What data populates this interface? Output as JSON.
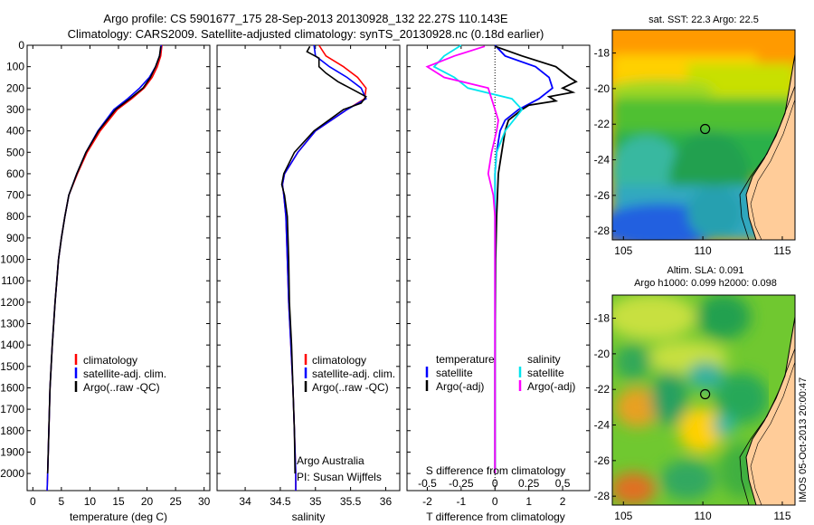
{
  "header": {
    "title_line1": "Argo profile: CS 5901677_175 28-Sep-2013 20130928_132 22.27S 110.143E",
    "title_line2": "Climatology: CARS2009. Satellite-adjusted climatology: synTS_20130928.nc (0.18d earlier)"
  },
  "colors": {
    "climatology": "#ff0000",
    "satellite_adj": "#0000ff",
    "argo": "#000000",
    "s_satellite": "#00e5ee",
    "s_argo": "#ff00ff"
  },
  "chart_data": [
    {
      "id": "temperature",
      "type": "line",
      "xlabel": "temperature (deg C)",
      "ylabel": "",
      "xlim": [
        -1,
        31
      ],
      "ylim": [
        2080,
        0
      ],
      "xticks": [
        0,
        5,
        10,
        15,
        20,
        25,
        30
      ],
      "yticks": [
        0,
        100,
        200,
        300,
        400,
        500,
        600,
        700,
        800,
        900,
        1000,
        1100,
        1200,
        1300,
        1400,
        1500,
        1600,
        1700,
        1800,
        1900,
        2000
      ],
      "legend": [
        "climatology",
        "satellite-adj. clim.",
        "Argo(..raw -QC)"
      ],
      "series": [
        {
          "name": "climatology",
          "color": "#ff0000",
          "depth": [
            0,
            50,
            100,
            150,
            200,
            250,
            300,
            400,
            500,
            600,
            700,
            800,
            900,
            1000,
            1200,
            1400,
            1600,
            1800,
            2000,
            2080
          ],
          "values": [
            22.6,
            22.4,
            21.8,
            20.9,
            19.5,
            17.3,
            14.8,
            11.8,
            9.5,
            7.8,
            6.3,
            5.6,
            5.0,
            4.5,
            3.9,
            3.4,
            3.0,
            2.8,
            2.6,
            2.5
          ]
        },
        {
          "name": "satellite-adj. clim.",
          "color": "#0000ff",
          "depth": [
            0,
            50,
            100,
            150,
            200,
            250,
            300,
            400,
            500,
            600,
            700,
            800,
            900,
            1000,
            1200,
            1400,
            1600,
            1800,
            2000,
            2080
          ],
          "values": [
            22.5,
            22.2,
            21.5,
            20.4,
            18.7,
            16.6,
            14.2,
            11.4,
            9.3,
            7.7,
            6.3,
            5.6,
            5.0,
            4.5,
            3.9,
            3.4,
            3.0,
            2.8,
            2.6,
            2.5
          ]
        },
        {
          "name": "Argo(..raw -QC)",
          "color": "#000000",
          "depth": [
            5,
            50,
            100,
            150,
            200,
            250,
            300,
            400,
            500,
            600,
            700,
            800,
            900,
            1000,
            1200,
            1400,
            1600,
            1800,
            2000
          ],
          "values": [
            22.4,
            22.2,
            21.5,
            20.6,
            19.3,
            17.0,
            14.5,
            11.5,
            9.3,
            7.7,
            6.3,
            5.6,
            5.0,
            4.5,
            3.9,
            3.4,
            3.0,
            2.8,
            2.6
          ]
        }
      ]
    },
    {
      "id": "salinity",
      "type": "line",
      "xlabel": "salinity",
      "xlim": [
        33.6,
        36.2
      ],
      "ylim": [
        2080,
        0
      ],
      "xticks": [
        34,
        34.5,
        35,
        35.5,
        36
      ],
      "legend": [
        "climatology",
        "satellite-adj. clim.",
        "Argo(..raw -QC)"
      ],
      "annotation": [
        "Argo Australia",
        "PI: Susan Wijffels"
      ],
      "series": [
        {
          "name": "climatology",
          "color": "#ff0000",
          "depth": [
            0,
            50,
            100,
            150,
            200,
            250,
            300,
            400,
            500,
            600,
            650,
            700,
            800,
            1000,
            1200,
            1400,
            1600,
            1800,
            2000,
            2080
          ],
          "values": [
            35.05,
            35.15,
            35.4,
            35.6,
            35.72,
            35.7,
            35.45,
            35.0,
            34.75,
            34.56,
            34.53,
            34.55,
            34.58,
            34.6,
            34.62,
            34.65,
            34.68,
            34.7,
            34.72,
            34.72
          ]
        },
        {
          "name": "satellite-adj. clim.",
          "color": "#0000ff",
          "depth": [
            0,
            50,
            100,
            150,
            200,
            250,
            300,
            400,
            500,
            600,
            650,
            700,
            800,
            1000,
            1200,
            1400,
            1600,
            1800,
            2000,
            2080
          ],
          "values": [
            34.98,
            35.0,
            35.2,
            35.45,
            35.65,
            35.72,
            35.45,
            35.0,
            34.75,
            34.56,
            34.53,
            34.55,
            34.58,
            34.6,
            34.62,
            34.65,
            34.68,
            34.7,
            34.72,
            34.72
          ]
        },
        {
          "name": "Argo(..raw -QC)",
          "color": "#000000",
          "depth": [
            5,
            30,
            60,
            100,
            130,
            170,
            210,
            240,
            270,
            300,
            400,
            500,
            600,
            650,
            700,
            800,
            1000,
            1200,
            1400,
            1600,
            1800,
            2000
          ],
          "values": [
            34.92,
            34.88,
            35.05,
            35.05,
            35.15,
            35.32,
            35.55,
            35.72,
            35.65,
            35.4,
            34.98,
            34.7,
            34.55,
            34.52,
            34.56,
            34.6,
            34.62,
            34.63,
            34.66,
            34.68,
            34.7,
            34.71
          ]
        }
      ]
    },
    {
      "id": "differences",
      "type": "line",
      "xlabel": "T difference from climatology",
      "xlabel_top": "S difference from climatology",
      "xlim": [
        -2.6,
        2.8
      ],
      "ylim": [
        2080,
        0
      ],
      "xticks": [
        -2,
        -1,
        0,
        1,
        2
      ],
      "xticks_s": [
        -0.5,
        -0.25,
        0,
        0.25,
        0.5
      ],
      "xticks_s_labels": [
        "-0.5",
        "-0.25",
        "0",
        "0.25",
        "0.5"
      ],
      "legend_temperature": {
        "heading": "temperature",
        "items": [
          "satellite",
          "Argo(-adj)"
        ]
      },
      "legend_salinity": {
        "heading": "salinity",
        "items": [
          "satellite",
          "Argo(-adj)"
        ]
      },
      "series": [
        {
          "name": "T satellite",
          "color": "#0000ff",
          "depth": [
            0,
            50,
            100,
            150,
            200,
            250,
            300,
            350,
            400,
            500,
            600,
            800,
            1000,
            1500,
            2000
          ],
          "values": [
            0,
            0.3,
            1.2,
            1.6,
            1.7,
            1.3,
            0.7,
            0.3,
            0.15,
            0.05,
            0,
            0,
            0,
            0,
            0
          ]
        },
        {
          "name": "T Argo(-adj)",
          "color": "#000000",
          "depth": [
            5,
            50,
            100,
            150,
            170,
            200,
            220,
            240,
            260,
            280,
            300,
            350,
            400,
            500,
            600,
            800,
            1000,
            1500,
            2000
          ],
          "values": [
            0,
            0.8,
            1.8,
            2.2,
            2.4,
            2.0,
            2.3,
            1.6,
            1.8,
            1.0,
            0.8,
            0.4,
            0.3,
            0.2,
            0.1,
            0.05,
            0.02,
            0,
            0
          ]
        },
        {
          "name": "S satellite",
          "color": "#00e5ee",
          "depth": [
            0,
            50,
            100,
            150,
            200,
            250,
            300,
            400,
            500,
            600,
            800,
            1000,
            1500,
            2000
          ],
          "values": [
            -1.0,
            -1.5,
            -1.8,
            -1.2,
            -0.8,
            0.5,
            0.8,
            0.3,
            0.05,
            0,
            0,
            0,
            0,
            0
          ]
        },
        {
          "name": "S Argo(-adj)",
          "color": "#ff00ff",
          "depth": [
            5,
            50,
            100,
            150,
            200,
            250,
            300,
            350,
            400,
            500,
            600,
            700,
            800,
            1000,
            1500,
            2000
          ],
          "values": [
            -0.3,
            -1.2,
            -2.0,
            -1.5,
            -0.2,
            -0.1,
            0,
            0.1,
            0.05,
            -0.1,
            -0.2,
            -0.05,
            0,
            0,
            0,
            0
          ]
        }
      ]
    },
    {
      "id": "sst_map",
      "type": "heatmap",
      "title": "sat. SST: 22.3 Argo: 22.5",
      "xticks": [
        105,
        110,
        115
      ],
      "yticks": [
        -18,
        -20,
        -22,
        -24,
        -26,
        -28
      ],
      "xlim": [
        104.3,
        115.8
      ],
      "ylim": [
        -28.5,
        -16.7
      ],
      "marker": {
        "lon": 110.143,
        "lat": -22.27
      }
    },
    {
      "id": "sla_map",
      "type": "heatmap",
      "title_line1": "Altim. SLA: 0.091",
      "title_line2": "Argo h1000: 0.099 h2000: 0.098",
      "xticks": [
        105,
        110,
        115
      ],
      "yticks": [
        -18,
        -20,
        -22,
        -24,
        -26,
        -28
      ],
      "xlim": [
        104.3,
        115.8
      ],
      "ylim": [
        -28.5,
        -16.7
      ],
      "marker": {
        "lon": 110.143,
        "lat": -22.27
      }
    }
  ],
  "credit": "IMOS 05-Oct-2013 20:00:47"
}
